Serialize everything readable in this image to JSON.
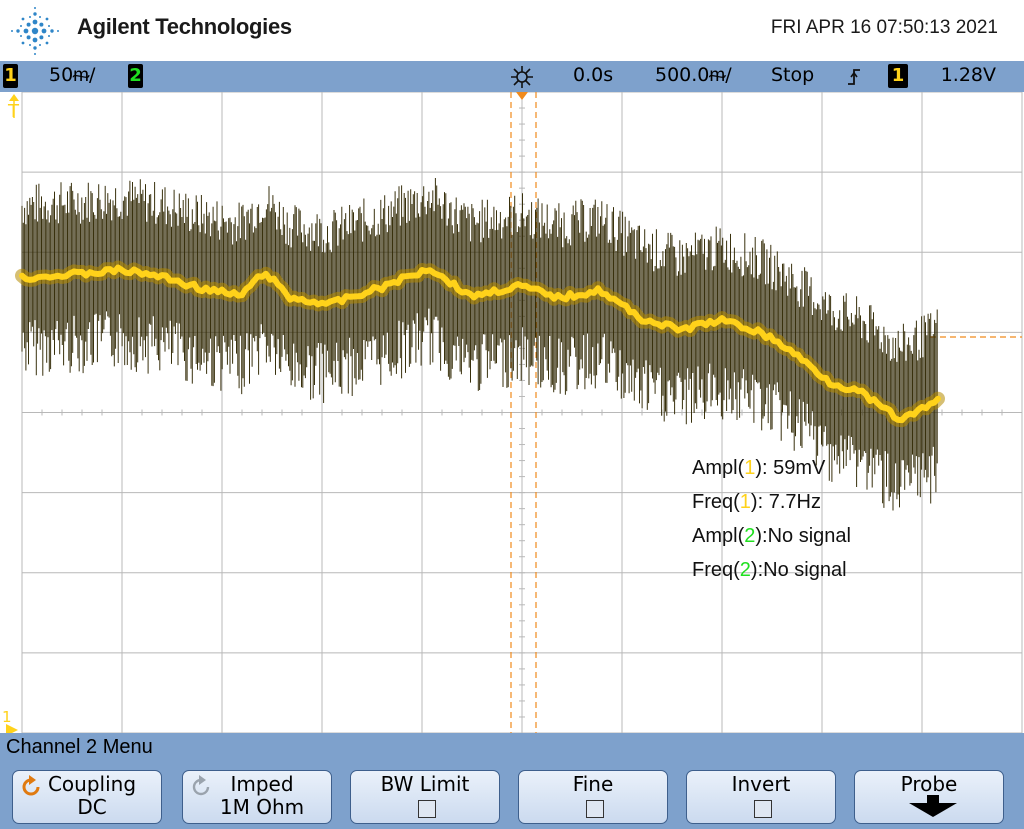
{
  "brand": {
    "name": "Agilent Technologies",
    "logo_icon": "agilent-spark-icon",
    "logo_color": "#2f86c8"
  },
  "datetime": "FRI APR 16 07:50:13 2021",
  "status_bar": {
    "ch1_badge": "1",
    "ch1_scale": "50ᵯ/",
    "ch2_badge": "2",
    "time_ref_icon": "time-reference-icon",
    "time_delay": "0.0s",
    "time_scale": "500.0ᵯ/",
    "run_state": "Stop",
    "trigger_slope_icon": "rising-edge-icon",
    "trigger_channel": "1",
    "trigger_level": "1.28V"
  },
  "colors": {
    "ch1": "#ffd21a",
    "ch2": "#20e020",
    "cursor": "#f08a1c",
    "status_bar": "#7ea1cc",
    "grid": "#b8b8b8"
  },
  "markers": {
    "ch1_ground": "1",
    "trigger_level_left": "T"
  },
  "measurements": [
    {
      "label_pre": "Ampl(",
      "ch": "1",
      "label_post": "): 59mV",
      "ch_color": "ch1"
    },
    {
      "label_pre": "Freq(",
      "ch": "1",
      "label_post": "): 7.7Hz",
      "ch_color": "ch1"
    },
    {
      "label_pre": "Ampl(",
      "ch": "2",
      "label_post": "):No signal",
      "ch_color": "ch2"
    },
    {
      "label_pre": "Freq(",
      "ch": "2",
      "label_post": "):No signal",
      "ch_color": "ch2"
    }
  ],
  "menu": {
    "title": "Channel 2  Menu",
    "softkeys": {
      "coupling": {
        "label": "Coupling",
        "value": "DC"
      },
      "impedance": {
        "label": "Imped",
        "value": "1M Ohm"
      },
      "bw_limit": {
        "label": "BW Limit"
      },
      "fine": {
        "label": "Fine"
      },
      "invert": {
        "label": "Invert"
      },
      "probe": {
        "label": "Probe"
      }
    }
  }
}
